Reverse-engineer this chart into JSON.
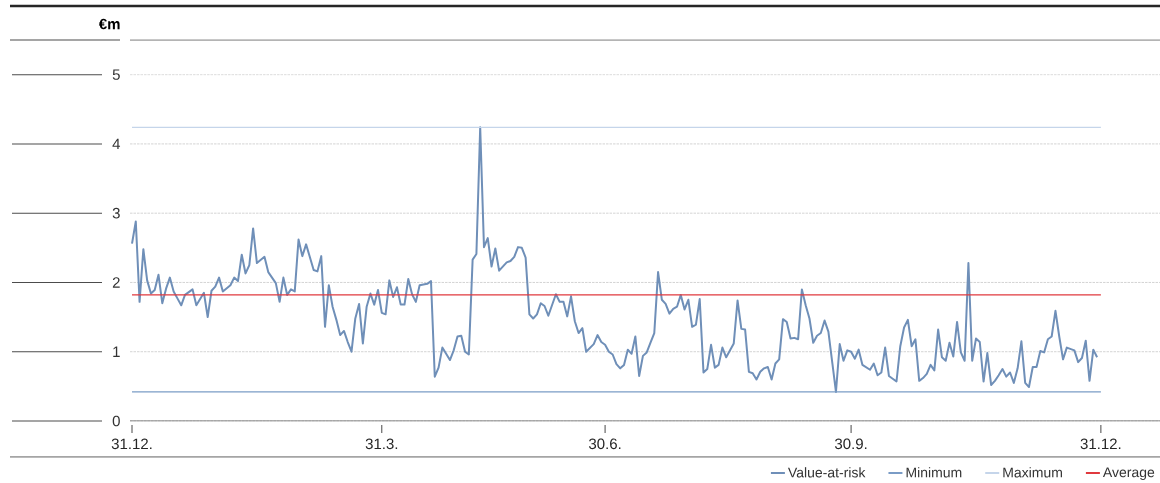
{
  "chart_data": {
    "type": "line",
    "ylabel": "€m",
    "ylim": [
      0,
      5.5
    ],
    "yticks": [
      0,
      1,
      2,
      3,
      4,
      5
    ],
    "categories": [
      "31.12.",
      null,
      null,
      null,
      null,
      null,
      null,
      null,
      null,
      null,
      null,
      null,
      null,
      null,
      null,
      null,
      null,
      null,
      null,
      null,
      null,
      null,
      null,
      null,
      null,
      null,
      null,
      null,
      null,
      null,
      null,
      null,
      null,
      null,
      null,
      null,
      null,
      null,
      null,
      null,
      null,
      null,
      null,
      null,
      null,
      null,
      null,
      null,
      null,
      null,
      null,
      null,
      null,
      null,
      null,
      null,
      null,
      null,
      null,
      null,
      null,
      null,
      null,
      null,
      null,
      null,
      "31.3.",
      null,
      null,
      null,
      null,
      null,
      null,
      null,
      null,
      null,
      null,
      null,
      null,
      null,
      null,
      null,
      null,
      null,
      null,
      null,
      null,
      null,
      null,
      null,
      null,
      null,
      null,
      null,
      null,
      null,
      null,
      null,
      null,
      null,
      null,
      null,
      null,
      null,
      null,
      null,
      null,
      null,
      null,
      null,
      null,
      null,
      null,
      null,
      null,
      null,
      null,
      null,
      null,
      null,
      null,
      null,
      null,
      null,
      null,
      "30.6.",
      null,
      null,
      null,
      null,
      null,
      null,
      null,
      null,
      null,
      null,
      null,
      null,
      null,
      null,
      null,
      null,
      null,
      null,
      null,
      null,
      null,
      null,
      null,
      null,
      null,
      null,
      null,
      null,
      null,
      null,
      null,
      null,
      null,
      null,
      null,
      null,
      null,
      null,
      null,
      null,
      null,
      null,
      null,
      null,
      null,
      null,
      null,
      null,
      null,
      null,
      null,
      null,
      null,
      null,
      null,
      null,
      null,
      null,
      null,
      null,
      null,
      null,
      null,
      null,
      "30.9.",
      null,
      null,
      null,
      null,
      null,
      null,
      null,
      null,
      null,
      null,
      null,
      null,
      null,
      null,
      null,
      null,
      null,
      null,
      null,
      null,
      null,
      null,
      null,
      null,
      null,
      null,
      null,
      null,
      null,
      null,
      null,
      null,
      null,
      null,
      null,
      null,
      null,
      null,
      null,
      null,
      null,
      null,
      null,
      null,
      null,
      null,
      null,
      null,
      null,
      null,
      null,
      null,
      null,
      null,
      null,
      null,
      null,
      null,
      null,
      null,
      null,
      null,
      null,
      null,
      null,
      "31.12."
    ],
    "grid": "y",
    "legend": "bottom right",
    "marker": "none",
    "line_style": "solid",
    "series": [
      {
        "name": "Value-at-risk",
        "color": "#6f8fb8",
        "values": [
          2.56,
          2.88,
          1.72,
          2.48,
          2.03,
          1.84,
          1.89,
          2.11,
          1.7,
          1.91,
          2.07,
          1.87,
          1.77,
          1.67,
          1.82,
          null,
          1.9,
          1.67,
          null,
          1.85,
          1.5,
          1.88,
          1.94,
          2.07,
          1.87,
          null,
          1.96,
          2.07,
          2.02,
          2.4,
          2.13,
          2.25,
          2.78,
          2.28,
          null,
          2.37,
          2.15,
          null,
          1.99,
          1.72,
          2.07,
          1.82,
          1.9,
          1.87,
          2.62,
          2.38,
          2.55,
          null,
          2.18,
          2.16,
          2.38,
          1.36,
          1.96,
          1.65,
          1.46,
          1.24,
          1.3,
          1.14,
          1.0,
          1.48,
          1.69,
          1.12,
          1.65,
          1.84,
          1.68,
          1.89,
          1.56,
          1.54,
          2.03,
          1.79,
          1.93,
          1.68,
          1.68,
          2.05,
          1.83,
          1.72,
          1.96,
          null,
          1.98,
          2.02,
          0.64,
          0.77,
          1.06,
          null,
          0.88,
          1.02,
          1.22,
          1.23,
          1.0,
          0.96,
          2.33,
          2.41,
          4.24,
          2.51,
          2.64,
          2.23,
          2.49,
          2.17,
          null,
          2.29,
          2.31,
          2.37,
          2.51,
          2.5,
          2.36,
          1.54,
          1.48,
          1.54,
          1.7,
          1.66,
          1.52,
          null,
          1.83,
          1.72,
          1.72,
          1.51,
          1.8,
          1.44,
          1.27,
          1.34,
          1.0,
          null,
          1.11,
          1.24,
          1.14,
          1.1,
          1.0,
          0.96,
          0.82,
          0.76,
          0.81,
          1.03,
          0.97,
          1.22,
          0.65,
          0.94,
          0.99,
          1.13,
          1.27,
          2.15,
          1.75,
          1.69,
          1.55,
          1.62,
          1.65,
          1.82,
          1.61,
          1.75,
          1.36,
          1.39,
          1.76,
          0.7,
          0.75,
          1.1,
          0.77,
          0.81,
          1.06,
          0.92,
          null,
          1.12,
          1.74,
          1.33,
          1.32,
          0.71,
          0.69,
          0.6,
          0.71,
          0.76,
          0.78,
          0.6,
          0.83,
          0.89,
          1.47,
          1.43,
          1.19,
          1.2,
          1.18,
          1.9,
          1.67,
          1.48,
          1.13,
          1.23,
          1.27,
          1.45,
          1.29,
          null,
          0.42,
          1.11,
          0.87,
          1.02,
          1.0,
          0.9,
          1.03,
          0.81,
          null,
          0.74,
          0.83,
          0.66,
          0.7,
          1.06,
          0.65,
          null,
          0.57,
          1.08,
          1.35,
          1.46,
          1.08,
          1.18,
          0.58,
          0.62,
          0.68,
          0.81,
          0.73,
          1.32,
          0.92,
          0.87,
          1.13,
          0.93,
          1.43,
          0.99,
          0.87,
          2.28,
          0.87,
          1.19,
          1.14,
          0.57,
          0.98,
          0.52,
          0.58,
          0.66,
          0.75,
          0.64,
          0.7,
          0.55,
          0.76,
          1.15,
          0.55,
          0.49,
          0.78,
          0.78,
          1.01,
          0.99,
          1.18,
          1.22,
          1.59,
          1.22,
          0.89,
          1.06,
          null,
          1.02,
          0.85,
          0.91,
          1.16,
          0.58,
          1.03,
          0.92,
          null
        ]
      },
      {
        "name": "Minimum",
        "color": "#7a9cc6",
        "values": [
          0.42,
          0.42,
          0.42,
          0.42,
          0.42,
          0.42,
          0.42,
          0.42,
          0.42,
          0.42,
          0.42,
          0.42,
          0.42,
          0.42,
          0.42,
          0.42,
          0.42,
          0.42,
          0.42,
          0.42,
          0.42,
          0.42,
          0.42,
          0.42,
          0.42,
          0.42,
          0.42,
          0.42,
          0.42,
          0.42,
          0.42,
          0.42,
          0.42,
          0.42,
          0.42,
          0.42,
          0.42,
          0.42,
          0.42,
          0.42,
          0.42,
          0.42,
          0.42,
          0.42,
          0.42,
          0.42,
          0.42,
          0.42,
          0.42,
          0.42,
          0.42,
          0.42,
          0.42,
          0.42,
          0.42,
          0.42,
          0.42,
          0.42,
          0.42,
          0.42,
          0.42,
          0.42,
          0.42,
          0.42,
          0.42,
          0.42,
          0.42,
          0.42,
          0.42,
          0.42,
          0.42,
          0.42,
          0.42,
          0.42,
          0.42,
          0.42,
          0.42,
          0.42,
          0.42,
          0.42,
          0.42,
          0.42,
          0.42,
          0.42,
          0.42,
          0.42,
          0.42,
          0.42,
          0.42,
          0.42,
          0.42,
          0.42,
          0.42,
          0.42,
          0.42,
          0.42,
          0.42,
          0.42,
          0.42,
          0.42,
          0.42,
          0.42,
          0.42,
          0.42,
          0.42,
          0.42,
          0.42,
          0.42,
          0.42,
          0.42,
          0.42,
          0.42,
          0.42,
          0.42,
          0.42,
          0.42,
          0.42,
          0.42,
          0.42,
          0.42,
          0.42,
          0.42,
          0.42,
          0.42,
          0.42,
          0.42,
          0.42,
          0.42,
          0.42,
          0.42,
          0.42,
          0.42,
          0.42,
          0.42,
          0.42,
          0.42,
          0.42,
          0.42,
          0.42,
          0.42,
          0.42,
          0.42,
          0.42,
          0.42,
          0.42,
          0.42,
          0.42,
          0.42,
          0.42,
          0.42,
          0.42,
          0.42,
          0.42,
          0.42,
          0.42,
          0.42,
          0.42,
          0.42,
          0.42,
          0.42,
          0.42,
          0.42,
          0.42,
          0.42,
          0.42,
          0.42,
          0.42,
          0.42,
          0.42,
          0.42,
          0.42,
          0.42,
          0.42,
          0.42,
          0.42,
          0.42,
          0.42,
          0.42,
          0.42,
          0.42,
          0.42,
          0.42,
          0.42,
          0.42,
          0.42,
          0.42,
          0.42,
          0.42,
          0.42,
          0.42,
          0.42,
          0.42,
          0.42,
          0.42,
          0.42,
          0.42,
          0.42,
          0.42,
          0.42,
          0.42,
          0.42,
          0.42,
          0.42,
          0.42,
          0.42,
          0.42,
          0.42,
          0.42,
          0.42,
          0.42,
          0.42,
          0.42,
          0.42,
          0.42,
          0.42,
          0.42,
          0.42,
          0.42,
          0.42,
          0.42,
          0.42,
          0.42,
          0.42,
          0.42,
          0.42,
          0.42,
          0.42,
          0.42,
          0.42,
          0.42,
          0.42,
          0.42,
          0.42,
          0.42,
          0.42,
          0.42,
          0.42,
          0.42,
          0.42,
          0.42,
          0.42,
          0.42,
          0.42,
          0.42,
          0.42,
          0.42,
          0.42,
          0.42,
          0.42,
          0.42,
          0.42,
          0.42,
          0.42,
          0.42,
          0.42,
          0.42,
          0.42
        ]
      },
      {
        "name": "Maximum",
        "color": "#c5d5ea",
        "values": [
          4.24,
          4.24,
          4.24,
          4.24,
          4.24,
          4.24,
          4.24,
          4.24,
          4.24,
          4.24,
          4.24,
          4.24,
          4.24,
          4.24,
          4.24,
          4.24,
          4.24,
          4.24,
          4.24,
          4.24,
          4.24,
          4.24,
          4.24,
          4.24,
          4.24,
          4.24,
          4.24,
          4.24,
          4.24,
          4.24,
          4.24,
          4.24,
          4.24,
          4.24,
          4.24,
          4.24,
          4.24,
          4.24,
          4.24,
          4.24,
          4.24,
          4.24,
          4.24,
          4.24,
          4.24,
          4.24,
          4.24,
          4.24,
          4.24,
          4.24,
          4.24,
          4.24,
          4.24,
          4.24,
          4.24,
          4.24,
          4.24,
          4.24,
          4.24,
          4.24,
          4.24,
          4.24,
          4.24,
          4.24,
          4.24,
          4.24,
          4.24,
          4.24,
          4.24,
          4.24,
          4.24,
          4.24,
          4.24,
          4.24,
          4.24,
          4.24,
          4.24,
          4.24,
          4.24,
          4.24,
          4.24,
          4.24,
          4.24,
          4.24,
          4.24,
          4.24,
          4.24,
          4.24,
          4.24,
          4.24,
          4.24,
          4.24,
          4.24,
          4.24,
          4.24,
          4.24,
          4.24,
          4.24,
          4.24,
          4.24,
          4.24,
          4.24,
          4.24,
          4.24,
          4.24,
          4.24,
          4.24,
          4.24,
          4.24,
          4.24,
          4.24,
          4.24,
          4.24,
          4.24,
          4.24,
          4.24,
          4.24,
          4.24,
          4.24,
          4.24,
          4.24,
          4.24,
          4.24,
          4.24,
          4.24,
          4.24,
          4.24,
          4.24,
          4.24,
          4.24,
          4.24,
          4.24,
          4.24,
          4.24,
          4.24,
          4.24,
          4.24,
          4.24,
          4.24,
          4.24,
          4.24,
          4.24,
          4.24,
          4.24,
          4.24,
          4.24,
          4.24,
          4.24,
          4.24,
          4.24,
          4.24,
          4.24,
          4.24,
          4.24,
          4.24,
          4.24,
          4.24,
          4.24,
          4.24,
          4.24,
          4.24,
          4.24,
          4.24,
          4.24,
          4.24,
          4.24,
          4.24,
          4.24,
          4.24,
          4.24,
          4.24,
          4.24,
          4.24,
          4.24,
          4.24,
          4.24,
          4.24,
          4.24,
          4.24,
          4.24,
          4.24,
          4.24,
          4.24,
          4.24,
          4.24,
          4.24,
          4.24,
          4.24,
          4.24,
          4.24,
          4.24,
          4.24,
          4.24,
          4.24,
          4.24,
          4.24,
          4.24,
          4.24,
          4.24,
          4.24,
          4.24,
          4.24,
          4.24,
          4.24,
          4.24,
          4.24,
          4.24,
          4.24,
          4.24,
          4.24,
          4.24,
          4.24,
          4.24,
          4.24,
          4.24,
          4.24,
          4.24,
          4.24,
          4.24,
          4.24,
          4.24,
          4.24,
          4.24,
          4.24,
          4.24,
          4.24,
          4.24,
          4.24,
          4.24,
          4.24,
          4.24,
          4.24,
          4.24,
          4.24,
          4.24,
          4.24,
          4.24,
          4.24,
          4.24,
          4.24,
          4.24,
          4.24,
          4.24,
          4.24,
          4.24,
          4.24,
          4.24,
          4.24,
          4.24,
          4.24,
          4.24,
          4.24,
          4.24,
          4.24,
          4.24,
          4.24,
          4.24
        ]
      },
      {
        "name": "Average",
        "color": "#e0393e",
        "values": [
          1.82,
          1.82,
          1.82,
          1.82,
          1.82,
          1.82,
          1.82,
          1.82,
          1.82,
          1.82,
          1.82,
          1.82,
          1.82,
          1.82,
          1.82,
          1.82,
          1.82,
          1.82,
          1.82,
          1.82,
          1.82,
          1.82,
          1.82,
          1.82,
          1.82,
          1.82,
          1.82,
          1.82,
          1.82,
          1.82,
          1.82,
          1.82,
          1.82,
          1.82,
          1.82,
          1.82,
          1.82,
          1.82,
          1.82,
          1.82,
          1.82,
          1.82,
          1.82,
          1.82,
          1.82,
          1.82,
          1.82,
          1.82,
          1.82,
          1.82,
          1.82,
          1.82,
          1.82,
          1.82,
          1.82,
          1.82,
          1.82,
          1.82,
          1.82,
          1.82,
          1.82,
          1.82,
          1.82,
          1.82,
          1.82,
          1.82,
          1.82,
          1.82,
          1.82,
          1.82,
          1.82,
          1.82,
          1.82,
          1.82,
          1.82,
          1.82,
          1.82,
          1.82,
          1.82,
          1.82,
          1.82,
          1.82,
          1.82,
          1.82,
          1.82,
          1.82,
          1.82,
          1.82,
          1.82,
          1.82,
          1.82,
          1.82,
          1.82,
          1.82,
          1.82,
          1.82,
          1.82,
          1.82,
          1.82,
          1.82,
          1.82,
          1.82,
          1.82,
          1.82,
          1.82,
          1.82,
          1.82,
          1.82,
          1.82,
          1.82,
          1.82,
          1.82,
          1.82,
          1.82,
          1.82,
          1.82,
          1.82,
          1.82,
          1.82,
          1.82,
          1.82,
          1.82,
          1.82,
          1.82,
          1.82,
          1.82,
          1.82,
          1.82,
          1.82,
          1.82,
          1.82,
          1.82,
          1.82,
          1.82,
          1.82,
          1.82,
          1.82,
          1.82,
          1.82,
          1.82,
          1.82,
          1.82,
          1.82,
          1.82,
          1.82,
          1.82,
          1.82,
          1.82,
          1.82,
          1.82,
          1.82,
          1.82,
          1.82,
          1.82,
          1.82,
          1.82,
          1.82,
          1.82,
          1.82,
          1.82,
          1.82,
          1.82,
          1.82,
          1.82,
          1.82,
          1.82,
          1.82,
          1.82,
          1.82,
          1.82,
          1.82,
          1.82,
          1.82,
          1.82,
          1.82,
          1.82,
          1.82,
          1.82,
          1.82,
          1.82,
          1.82,
          1.82,
          1.82,
          1.82,
          1.82,
          1.82,
          1.82,
          1.82,
          1.82,
          1.82,
          1.82,
          1.82,
          1.82,
          1.82,
          1.82,
          1.82,
          1.82,
          1.82,
          1.82,
          1.82,
          1.82,
          1.82,
          1.82,
          1.82,
          1.82,
          1.82,
          1.82,
          1.82,
          1.82,
          1.82,
          1.82,
          1.82,
          1.82,
          1.82,
          1.82,
          1.82,
          1.82,
          1.82,
          1.82,
          1.82,
          1.82,
          1.82,
          1.82,
          1.82,
          1.82,
          1.82,
          1.82,
          1.82,
          1.82,
          1.82,
          1.82,
          1.82,
          1.82,
          1.82,
          1.82,
          1.82,
          1.82,
          1.82,
          1.82,
          1.82,
          1.82,
          1.82,
          1.82,
          1.82,
          1.82,
          1.82,
          1.82,
          1.82,
          1.82,
          1.82,
          1.82,
          1.82,
          1.82,
          1.82,
          1.82,
          1.82,
          1.82
        ]
      }
    ]
  }
}
